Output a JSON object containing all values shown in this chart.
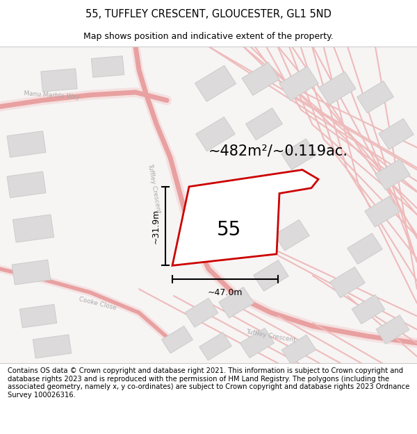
{
  "title": "55, TUFFLEY CRESCENT, GLOUCESTER, GL1 5ND",
  "subtitle": "Map shows position and indicative extent of the property.",
  "area_label": "~482m²/~0.119ac.",
  "number_label": "55",
  "dim_width": "~47.0m",
  "dim_height": "~31.9m",
  "map_bg": "#f7f4f4",
  "road_line_color": "#e8a0a0",
  "building_fill": "#dcdada",
  "building_edge": "#cccccc",
  "plot_stroke": "#cc0000",
  "text_color": "#000000",
  "road_label_color": "#aaaaaa",
  "footer_text": "Contains OS data © Crown copyright and database right 2021. This information is subject to Crown copyright and database rights 2023 and is reproduced with the permission of HM Land Registry. The polygons (including the associated geometry, namely x, y co-ordinates) are subject to Crown copyright and database rights 2023 Ordnance Survey 100026316.",
  "title_fontsize": 10.5,
  "subtitle_fontsize": 9,
  "area_fontsize": 15,
  "number_fontsize": 20,
  "dim_fontsize": 9,
  "road_label_fontsize": 6.5,
  "footer_fontsize": 7.2
}
